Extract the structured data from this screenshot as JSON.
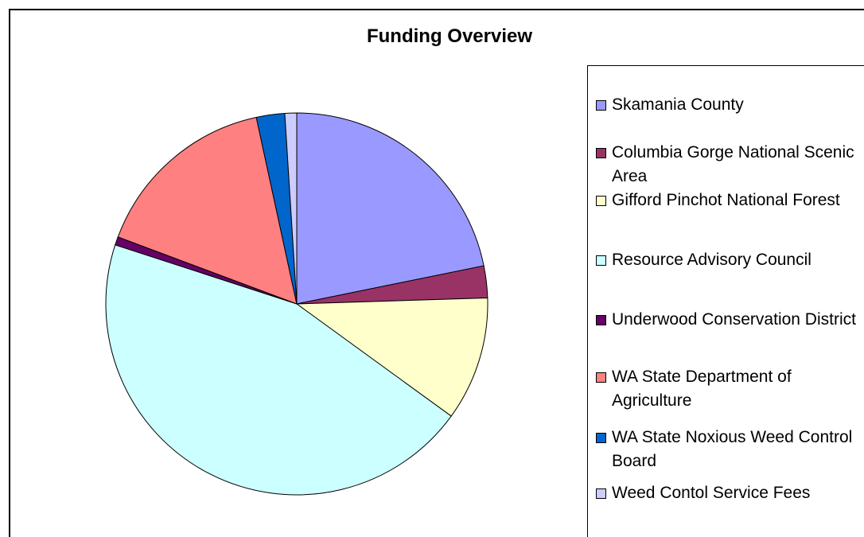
{
  "chart_data": {
    "type": "pie",
    "title": "Funding Overview",
    "categories": [
      "Skamania County",
      "Columbia Gorge National Scenic Area",
      "Gifford Pinchot National Forest",
      "Resource Advisory Council",
      "Underwood Conservation District",
      "WA State Department of Agriculture",
      "WA State Noxious Weed Control Board",
      "Weed Contol Service Fees"
    ],
    "values": [
      21.8,
      2.7,
      10.5,
      45.0,
      0.7,
      15.9,
      2.4,
      1.0
    ],
    "colors": [
      "#9999FF",
      "#993366",
      "#FFFFCC",
      "#CCFFFF",
      "#660066",
      "#FF8080",
      "#0066CC",
      "#CCCCFF"
    ],
    "legend": "right",
    "start_angle_deg": 0,
    "direction": "clockwise"
  }
}
